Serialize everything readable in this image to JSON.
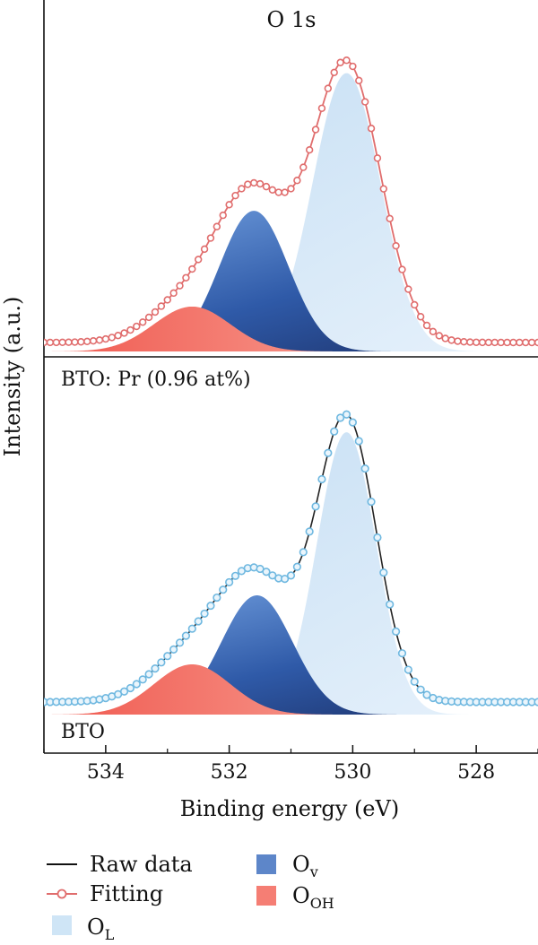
{
  "chart_data": {
    "type": "area",
    "title": "O 1s",
    "xlabel": "Binding energy (eV)",
    "ylabel": "Intensity (a.u.)",
    "xlim": [
      535,
      527
    ],
    "x_reversed": true,
    "xticks": [
      534,
      532,
      530,
      528
    ],
    "grid": false,
    "legend_position": "bottom",
    "legend": {
      "raw": "Raw data",
      "fit": "Fitting",
      "ol": "O",
      "ol_sub": "L",
      "ov": "O",
      "ov_sub": "v",
      "ooh": "O",
      "ooh_sub": "OH"
    },
    "colors": {
      "raw": "#111111",
      "fit_top": "#e06d6d",
      "fit_bottom": "#6fb8e0",
      "ol_fill": "#cfe5f6",
      "ov_dark": "#1b2f66",
      "ov_light": "#6b9ede",
      "ooh_dark": "#fbd7d1",
      "ooh_light": "#f26a5f"
    },
    "panels": [
      {
        "label": "BTO: Pr (0.96 at%)",
        "components": [
          {
            "name": "OL",
            "center": 530.1,
            "sigma": 0.55,
            "height": 0.93
          },
          {
            "name": "Ov",
            "center": 531.6,
            "sigma": 0.56,
            "height": 0.47
          },
          {
            "name": "OOH",
            "center": 532.6,
            "sigma": 0.62,
            "height": 0.15
          }
        ],
        "baseline": 0.03,
        "fit_peak_x": 530.2,
        "fit_peak_y": 1.0
      },
      {
        "label": "BTO",
        "components": [
          {
            "name": "OL",
            "center": 530.1,
            "sigma": 0.48,
            "height": 0.9
          },
          {
            "name": "Ov",
            "center": 531.55,
            "sigma": 0.58,
            "height": 0.38
          },
          {
            "name": "OOH",
            "center": 532.6,
            "sigma": 0.62,
            "height": 0.16
          }
        ],
        "baseline": 0.04,
        "fit_peak_x": 530.2,
        "fit_peak_y": 1.0
      }
    ]
  }
}
